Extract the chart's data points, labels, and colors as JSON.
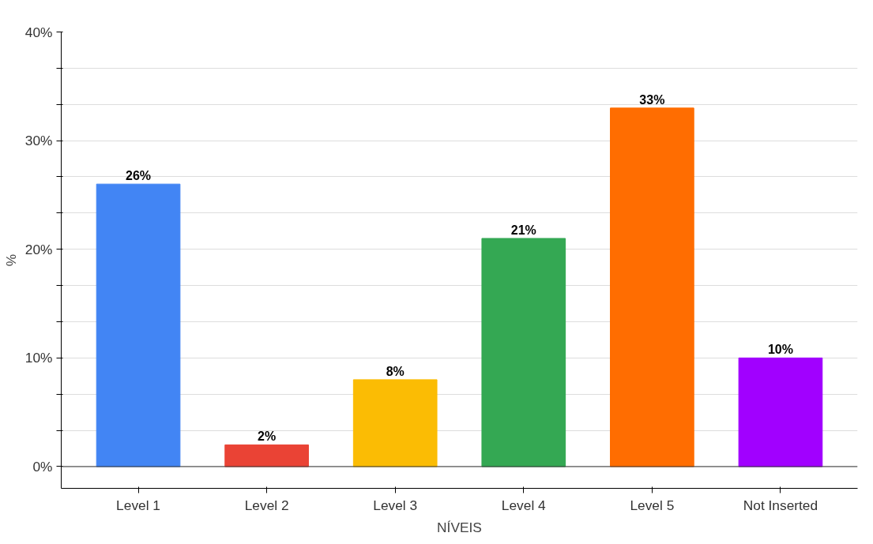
{
  "chart_data": {
    "type": "bar",
    "xlabel": "NÍVEIS",
    "ylabel": "%",
    "categories": [
      "Level 1",
      "Level 2",
      "Level 3",
      "Level 4",
      "Level 5",
      "Not Inserted"
    ],
    "values": [
      26,
      2,
      8,
      21,
      33,
      10
    ],
    "colors": [
      "#4285f4",
      "#ea4335",
      "#fbbc04",
      "#34a853",
      "#ff6d01",
      "#a100ff"
    ],
    "value_labels": [
      "26%",
      "2%",
      "8%",
      "21%",
      "33%",
      "10%"
    ],
    "ylim": [
      -2,
      40
    ],
    "yticks": [
      {
        "value": 0,
        "label": "0%"
      },
      {
        "value": 3.33,
        "label": null
      },
      {
        "value": 6.67,
        "label": null
      },
      {
        "value": 10,
        "label": "10%"
      },
      {
        "value": 13.33,
        "label": null
      },
      {
        "value": 16.67,
        "label": null
      },
      {
        "value": 20,
        "label": "20%"
      },
      {
        "value": 23.33,
        "label": null
      },
      {
        "value": 26.67,
        "label": null
      },
      {
        "value": 30,
        "label": "30%"
      },
      {
        "value": 33.33,
        "label": null
      },
      {
        "value": 36.67,
        "label": null
      },
      {
        "value": 40,
        "label": "40%"
      }
    ],
    "grid": "y"
  }
}
